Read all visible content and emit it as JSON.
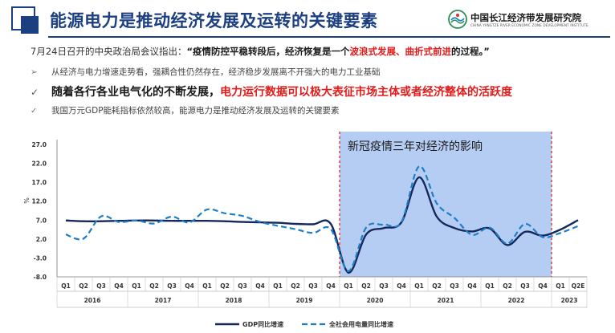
{
  "header": {
    "title": "能源电力是推动经济发展及运转的关键要素",
    "brand_name": "中国长江经济带发展研究院",
    "brand_subtitle": "CHINA YANGTZE RIVER ECONOMIC ZONE DEVELOPMENT INSTITUTE"
  },
  "colors": {
    "title": "#1b3f80",
    "accent_red": "#e31b1b",
    "gdp_line": "#14285c",
    "power_line": "#1f7fc6",
    "highlight": "#a8c4f0"
  },
  "quote": {
    "prefix": "7月24日召开的中央政治局会议指出：",
    "bold": "“疫情防控平稳转段后，经济恢复是一个",
    "red": "波浪式发展、曲折式前进",
    "suffix": "的过程。”"
  },
  "bullets": [
    {
      "mark": "➢",
      "text": "从经济与电力增速走势看，强耦合性仍然存在，经济稳步发展离不开强大的电力工业基础"
    },
    {
      "mark": "✓",
      "text": "随着各行各业电气化的不断发展，",
      "red": "电力运行数据可以极大表征市场主体或者经济整体的活跃度"
    },
    {
      "mark": "✓",
      "text": "我国万元GDP能耗指标依然较高，能源电力是推动经济发展及运转的关键要素"
    }
  ],
  "chart_data": {
    "type": "line",
    "ylabel": "%",
    "ylim": [
      -8,
      27
    ],
    "yticks": [
      "27.0",
      "22.0",
      "17.0",
      "12.0",
      "7.0",
      "2.0",
      "-3.0",
      "-8.0"
    ],
    "ytick_values": [
      27,
      22,
      17,
      12,
      7,
      2,
      -3,
      -8
    ],
    "categories": [
      "Q1",
      "Q2",
      "Q3",
      "Q4",
      "Q1",
      "Q2",
      "Q3",
      "Q4",
      "Q1",
      "Q2",
      "Q3",
      "Q4",
      "Q1",
      "Q2",
      "Q3",
      "Q4",
      "Q1",
      "Q2",
      "Q3",
      "Q4",
      "Q1",
      "Q2",
      "Q3",
      "Q4",
      "Q1",
      "Q2",
      "Q3",
      "Q4",
      "Q1",
      "Q2E"
    ],
    "years": [
      {
        "label": "2016",
        "span": 4
      },
      {
        "label": "2017",
        "span": 4
      },
      {
        "label": "2018",
        "span": 4
      },
      {
        "label": "2019",
        "span": 4
      },
      {
        "label": "2020",
        "span": 4
      },
      {
        "label": "2021",
        "span": 4
      },
      {
        "label": "2022",
        "span": 4
      },
      {
        "label": "2023",
        "span": 2
      }
    ],
    "series": [
      {
        "name": "GDP同比增速",
        "style": "solid",
        "values": [
          6.9,
          6.7,
          6.7,
          6.8,
          6.9,
          6.9,
          6.8,
          6.8,
          6.8,
          6.7,
          6.5,
          6.4,
          6.3,
          6.0,
          5.9,
          6.0,
          -6.9,
          3.2,
          4.9,
          6.4,
          18.3,
          7.9,
          4.9,
          4.0,
          4.8,
          0.4,
          3.9,
          2.9,
          4.5,
          7.0
        ]
      },
      {
        "name": "全社会用电量同比增速",
        "style": "dashed",
        "values": [
          3.2,
          2.1,
          8.0,
          6.5,
          6.9,
          6.1,
          7.9,
          6.4,
          9.8,
          8.8,
          8.1,
          6.5,
          5.5,
          4.6,
          3.6,
          4.6,
          -6.5,
          5.0,
          5.8,
          6.5,
          21.2,
          11.4,
          7.6,
          3.1,
          5.0,
          0.8,
          6.0,
          2.5,
          3.6,
          5.4
        ]
      }
    ],
    "highlight": {
      "label": "新冠疫情三年对经济的影响",
      "from_index": 16,
      "to_index": 27
    },
    "grid": false,
    "legend_position": "bottom-center"
  }
}
